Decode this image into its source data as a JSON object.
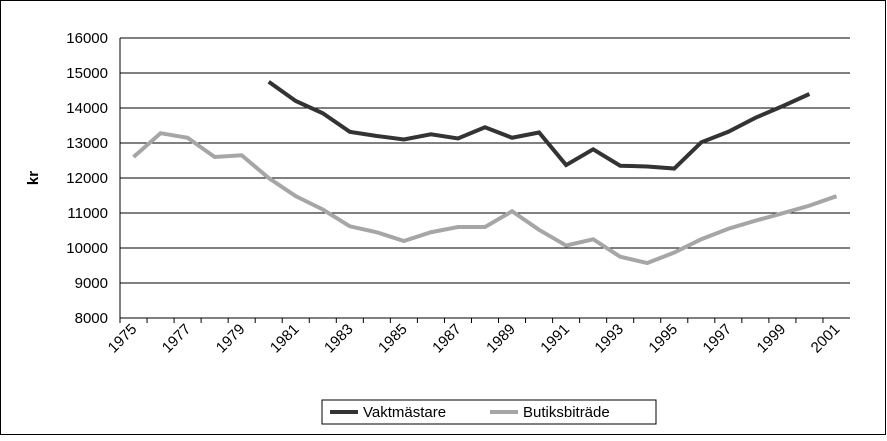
{
  "chart_data": {
    "type": "line",
    "y_label": "kr",
    "categories": [
      "1975",
      null,
      "1977",
      null,
      "1979",
      null,
      "1981",
      null,
      "1983",
      null,
      "1985",
      null,
      "1987",
      null,
      "1989",
      null,
      "1991",
      null,
      "1993",
      null,
      "1995",
      null,
      "1997",
      null,
      "1999",
      null,
      "2001"
    ],
    "series": [
      {
        "name": "Vaktmästare",
        "color": "#333333",
        "values": [
          null,
          null,
          null,
          null,
          null,
          14750,
          14200,
          13850,
          13320,
          13200,
          13100,
          13250,
          13130,
          13450,
          13150,
          13300,
          12370,
          12820,
          12350,
          12330,
          12270,
          13020,
          13320,
          13720,
          14050,
          14400,
          null
        ]
      },
      {
        "name": "Butiksbiträde",
        "color": "#a6a6a6",
        "values": [
          12600,
          13280,
          13150,
          12600,
          12650,
          12000,
          11480,
          11100,
          10620,
          10450,
          10200,
          10450,
          10600,
          10600,
          11050,
          10520,
          10070,
          10250,
          9750,
          9570,
          9870,
          10250,
          10550,
          10780,
          10990,
          11210,
          11480
        ]
      }
    ],
    "ylim": [
      8000,
      16000
    ],
    "yticks": [
      8000,
      9000,
      10000,
      11000,
      12000,
      13000,
      14000,
      15000,
      16000
    ],
    "grid": true
  }
}
